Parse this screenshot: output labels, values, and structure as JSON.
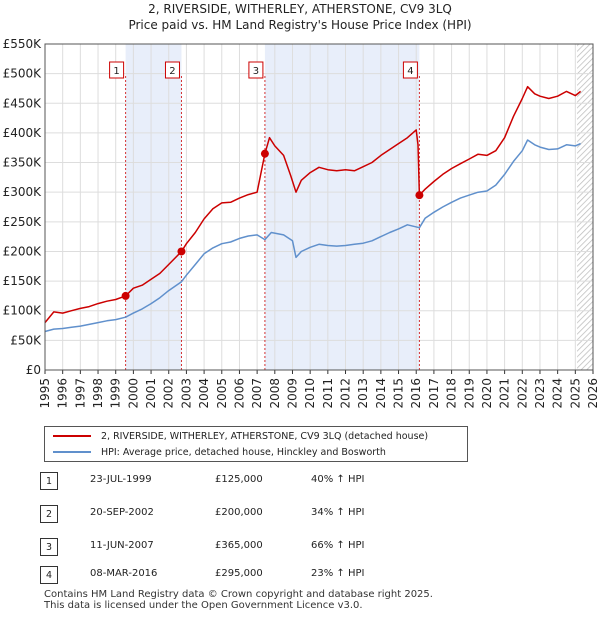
{
  "chart_data": {
    "type": "line",
    "title": "2, RIVERSIDE, WITHERLEY, ATHERSTONE, CV9 3LQ",
    "subtitle": "Price paid vs. HM Land Registry's House Price Index (HPI)",
    "xlabel": "",
    "ylabel": "",
    "xlim": [
      1995,
      2026
    ],
    "ylim": [
      0,
      550000
    ],
    "y_ticks": [
      0,
      50000,
      100000,
      150000,
      200000,
      250000,
      300000,
      350000,
      400000,
      450000,
      500000,
      550000
    ],
    "y_tick_labels": [
      "£0",
      "£50K",
      "£100K",
      "£150K",
      "£200K",
      "£250K",
      "£300K",
      "£350K",
      "£400K",
      "£450K",
      "£500K",
      "£550K"
    ],
    "x_ticks": [
      1995,
      1996,
      1997,
      1998,
      1999,
      2000,
      2001,
      2002,
      2003,
      2004,
      2005,
      2006,
      2007,
      2008,
      2009,
      2010,
      2011,
      2012,
      2013,
      2014,
      2015,
      2016,
      2017,
      2018,
      2019,
      2020,
      2021,
      2022,
      2023,
      2024,
      2025,
      2026
    ],
    "x_tick_labels": [
      "1995",
      "1996",
      "1997",
      "1998",
      "1999",
      "2000",
      "2001",
      "2002",
      "2003",
      "2004",
      "2005",
      "2006",
      "2007",
      "2008",
      "2009",
      "2010",
      "2011",
      "2012",
      "2013",
      "2014",
      "2015",
      "2016",
      "2017",
      "2018",
      "2019",
      "2020",
      "2021",
      "2022",
      "2023",
      "2024",
      "2025",
      "2026"
    ],
    "grid": true,
    "shaded_spans": [
      [
        1999.56,
        2002.72
      ],
      [
        2007.44,
        2016.18
      ]
    ],
    "forecast_from": 2025.1,
    "series": [
      {
        "name": "2, RIVERSIDE, WITHERLEY, ATHERSTONE, CV9 3LQ (detached house)",
        "color": "#cc0000",
        "x": [
          1995.0,
          1995.5,
          1996.0,
          1996.5,
          1997.0,
          1997.5,
          1998.0,
          1998.5,
          1999.0,
          1999.56,
          2000.0,
          2000.5,
          2001.0,
          2001.5,
          2002.0,
          2002.72,
          2003.0,
          2003.5,
          2004.0,
          2004.5,
          2005.0,
          2005.5,
          2006.0,
          2006.5,
          2007.0,
          2007.2,
          2007.44,
          2007.7,
          2008.0,
          2008.5,
          2008.9,
          2009.2,
          2009.5,
          2010.0,
          2010.5,
          2011.0,
          2011.5,
          2012.0,
          2012.5,
          2013.0,
          2013.5,
          2014.0,
          2014.5,
          2015.0,
          2015.5,
          2016.0,
          2016.1,
          2016.18,
          2016.5,
          2017.0,
          2017.5,
          2018.0,
          2018.5,
          2019.0,
          2019.5,
          2020.0,
          2020.5,
          2021.0,
          2021.5,
          2022.0,
          2022.3,
          2022.7,
          2023.0,
          2023.5,
          2024.0,
          2024.5,
          2025.0,
          2025.3
        ],
        "values": [
          80000,
          98000,
          96000,
          100000,
          104000,
          107000,
          112000,
          116000,
          119000,
          125000,
          138000,
          143000,
          153000,
          163000,
          178000,
          200000,
          213000,
          232000,
          255000,
          272000,
          282000,
          283000,
          290000,
          296000,
          300000,
          330000,
          365000,
          392000,
          378000,
          362000,
          328000,
          300000,
          320000,
          333000,
          342000,
          338000,
          336000,
          338000,
          336000,
          343000,
          350000,
          362000,
          372000,
          382000,
          392000,
          405000,
          380000,
          295000,
          305000,
          318000,
          330000,
          340000,
          348000,
          356000,
          364000,
          362000,
          370000,
          392000,
          428000,
          458000,
          478000,
          466000,
          462000,
          458000,
          462000,
          470000,
          463000,
          470000
        ]
      },
      {
        "name": "HPI: Average price, detached house, Hinckley and Bosworth",
        "color": "#6090cc",
        "x": [
          1995.0,
          1995.5,
          1996.0,
          1996.5,
          1997.0,
          1997.5,
          1998.0,
          1998.5,
          1999.0,
          1999.56,
          2000.0,
          2000.5,
          2001.0,
          2001.5,
          2002.0,
          2002.72,
          2003.0,
          2003.5,
          2004.0,
          2004.5,
          2005.0,
          2005.5,
          2006.0,
          2006.5,
          2007.0,
          2007.44,
          2007.8,
          2008.5,
          2009.0,
          2009.2,
          2009.5,
          2010.0,
          2010.5,
          2011.0,
          2011.5,
          2012.0,
          2012.5,
          2013.0,
          2013.5,
          2014.0,
          2014.5,
          2015.0,
          2015.5,
          2016.18,
          2016.5,
          2017.0,
          2017.5,
          2018.0,
          2018.5,
          2019.0,
          2019.5,
          2020.0,
          2020.5,
          2021.0,
          2021.5,
          2022.0,
          2022.3,
          2022.7,
          2023.0,
          2023.5,
          2024.0,
          2024.5,
          2025.0,
          2025.3
        ],
        "values": [
          65000,
          69000,
          70000,
          72000,
          74000,
          77000,
          80000,
          83000,
          85000,
          89000,
          96000,
          103000,
          112000,
          122000,
          134000,
          149000,
          160000,
          178000,
          196000,
          206000,
          213000,
          216000,
          222000,
          226000,
          228000,
          220000,
          232000,
          228000,
          218000,
          190000,
          200000,
          207000,
          212000,
          210000,
          209000,
          210000,
          212000,
          214000,
          218000,
          225000,
          232000,
          238000,
          245000,
          240000,
          256000,
          266000,
          275000,
          283000,
          290000,
          295000,
          300000,
          302000,
          312000,
          330000,
          352000,
          370000,
          388000,
          380000,
          376000,
          372000,
          373000,
          380000,
          378000,
          382000
        ]
      }
    ],
    "sales": [
      {
        "num": "1",
        "date": "23-JUL-1999",
        "price": "£125,000",
        "hpi": "40% ↑ HPI",
        "x": 1999.56,
        "value": 125000
      },
      {
        "num": "2",
        "date": "20-SEP-2002",
        "price": "£200,000",
        "hpi": "34% ↑ HPI",
        "x": 2002.72,
        "value": 200000
      },
      {
        "num": "3",
        "date": "11-JUN-2007",
        "price": "£365,000",
        "hpi": "66% ↑ HPI",
        "x": 2007.44,
        "value": 365000
      },
      {
        "num": "4",
        "date": "08-MAR-2016",
        "price": "£295,000",
        "hpi": "23% ↑ HPI",
        "x": 2016.18,
        "value": 295000
      }
    ]
  },
  "legend": {
    "property_label": "2, RIVERSIDE, WITHERLEY, ATHERSTONE, CV9 3LQ (detached house)",
    "hpi_label": "HPI: Average price, detached house, Hinckley and Bosworth"
  },
  "footer": {
    "line1": "Contains HM Land Registry data © Crown copyright and database right 2025.",
    "line2": "This data is licensed under the Open Government Licence v3.0."
  },
  "colors": {
    "property": "#cc0000",
    "hpi": "#6090cc",
    "shade": "#e8eefa",
    "grid": "#dddddd"
  }
}
